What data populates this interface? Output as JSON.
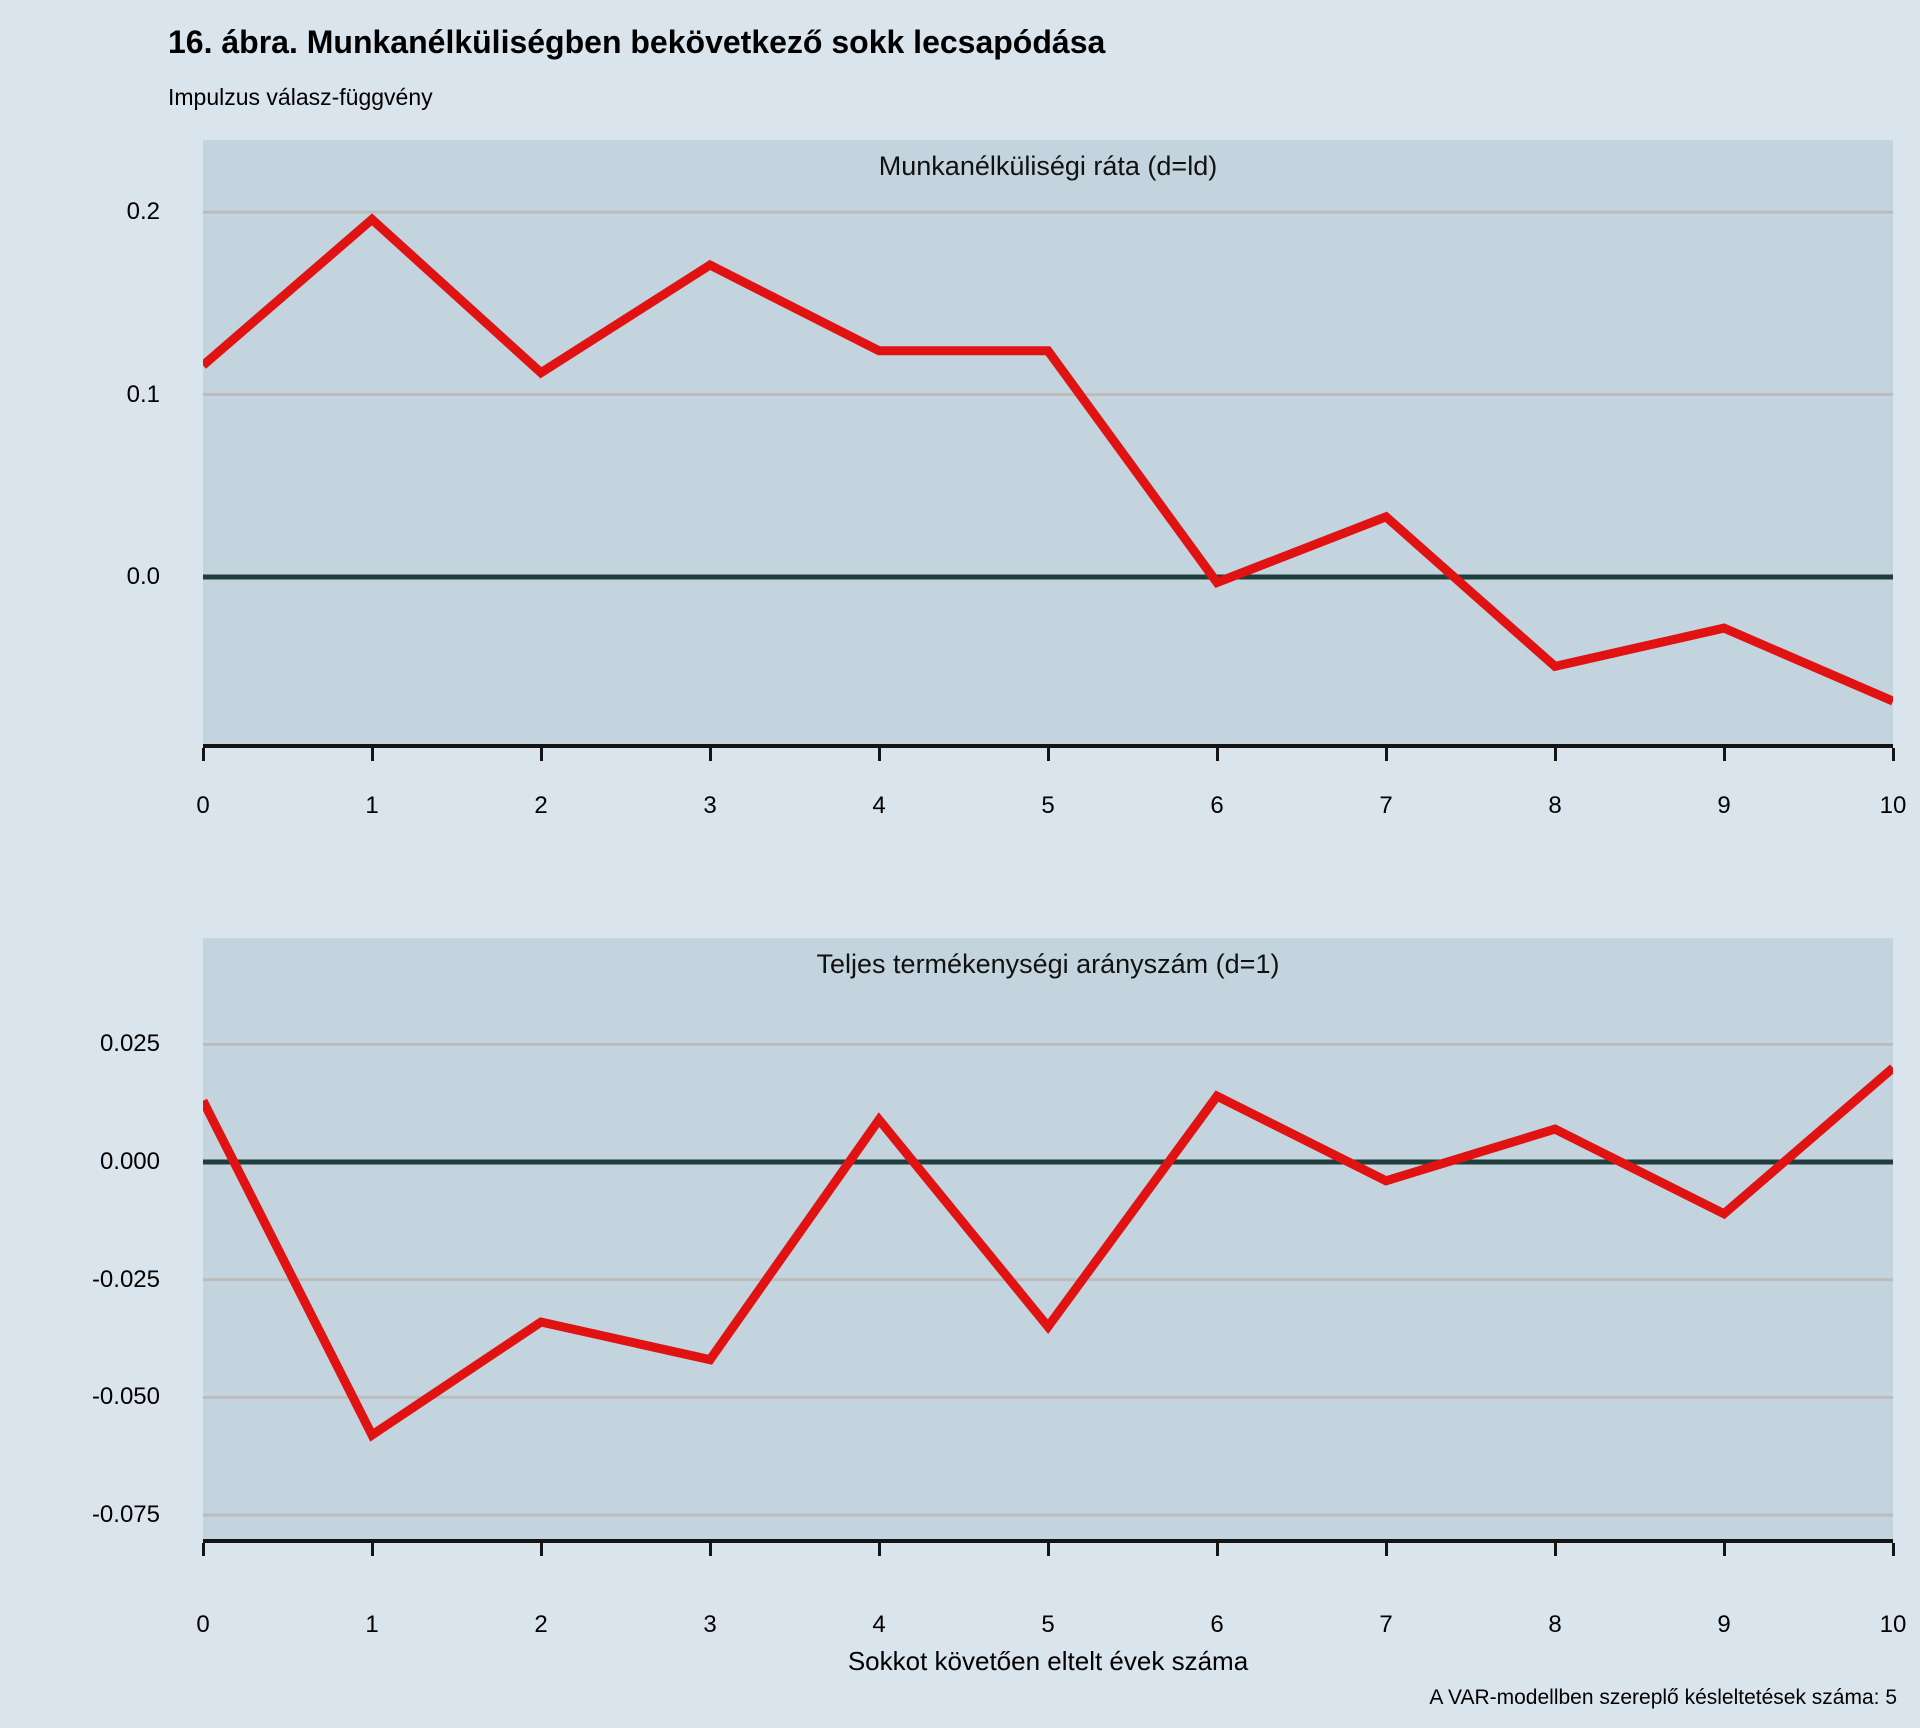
{
  "page": {
    "title": "16. ábra. Munkanélküliségben bekövetkező sokk lecsapódása",
    "subtitle": "Impulzus válasz-függvény",
    "xaxis_title": "Sokkot követően eltelt évek száma",
    "footnote": "A VAR-modellben szereplő késleltetések száma: 5"
  },
  "colors": {
    "background": "#d9e4ec",
    "panel_background": "#c3d4de",
    "gridline": "#bcbcbc",
    "zero_line": "#1f3e3c",
    "line": "#e01212",
    "axis": "#141414",
    "text": "#000000"
  },
  "chart_data": [
    {
      "type": "line",
      "title": "Munkanélküliségi ráta (d=ld)",
      "x": [
        0,
        1,
        2,
        3,
        4,
        5,
        6,
        7,
        8,
        9,
        10
      ],
      "xtick_labels": [
        "0",
        "1",
        "2",
        "3",
        "4",
        "5",
        "6",
        "7",
        "8",
        "9",
        "10"
      ],
      "values": [
        0.116,
        0.196,
        0.112,
        0.171,
        0.124,
        0.124,
        -0.003,
        0.033,
        -0.049,
        -0.028,
        -0.068
      ],
      "yticks": [
        {
          "value": 0.2,
          "label": "0.2"
        },
        {
          "value": 0.1,
          "label": "0.1"
        },
        {
          "value": 0.0,
          "label": "0.0"
        }
      ],
      "ylim": [
        -0.0915,
        0.2395
      ],
      "grid": true,
      "zero_line": true,
      "legend": "none",
      "color": "#e01212"
    },
    {
      "type": "line",
      "title": "Teljes termékenységi arányszám (d=1)",
      "x": [
        0,
        1,
        2,
        3,
        4,
        5,
        6,
        7,
        8,
        9,
        10
      ],
      "xtick_labels": [
        "0",
        "1",
        "2",
        "3",
        "4",
        "5",
        "6",
        "7",
        "8",
        "9",
        "10"
      ],
      "values": [
        0.013,
        -0.058,
        -0.034,
        -0.042,
        0.009,
        -0.035,
        0.014,
        -0.004,
        0.007,
        -0.011,
        0.02
      ],
      "yticks": [
        {
          "value": 0.025,
          "label": "0.025"
        },
        {
          "value": 0.0,
          "label": "0.000"
        },
        {
          "value": -0.025,
          "label": "-0.025"
        },
        {
          "value": -0.05,
          "label": "-0.050"
        },
        {
          "value": -0.075,
          "label": "-0.075"
        }
      ],
      "ylim": [
        -0.0801,
        0.0476
      ],
      "grid": true,
      "zero_line": true,
      "legend": "none",
      "color": "#e01212"
    }
  ]
}
